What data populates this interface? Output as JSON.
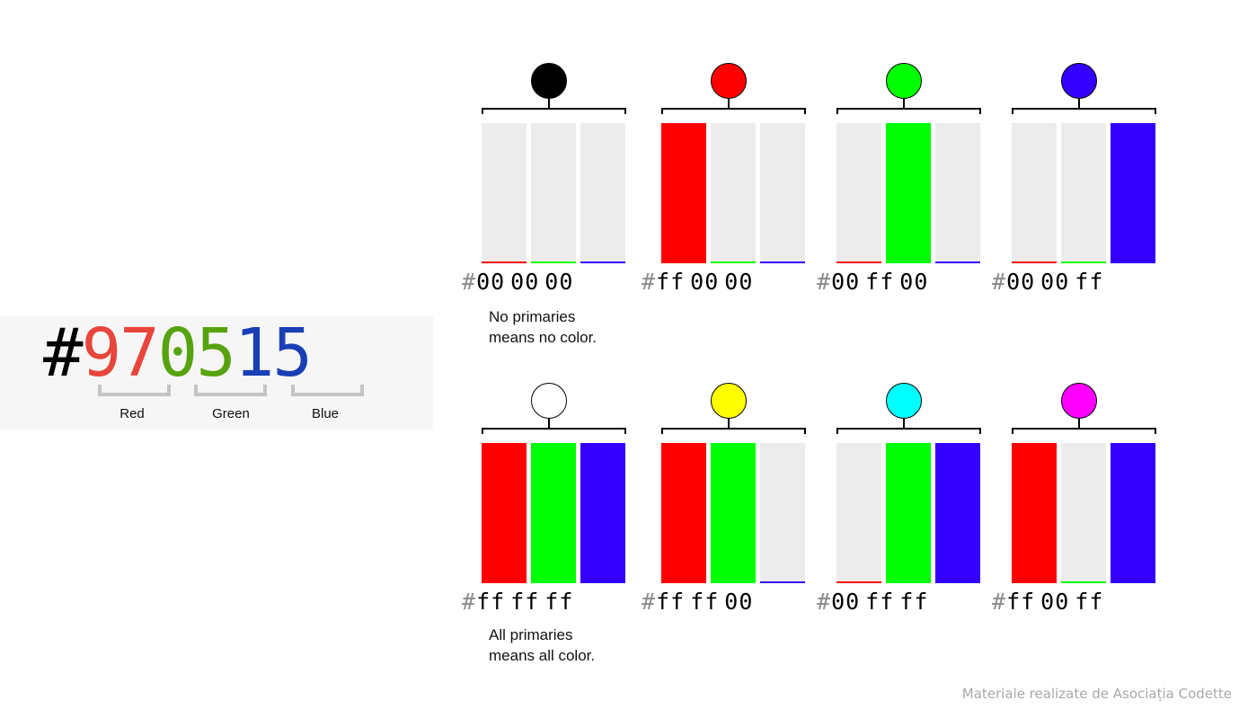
{
  "hex_example": {
    "hash": "#",
    "red_digits": "97",
    "green_digits": "05",
    "blue_digits": "15",
    "colors": {
      "hash": "#000000",
      "red": "#e8453c",
      "green": "#56a30f",
      "blue": "#1a3fb5"
    },
    "labels": {
      "red": "Red",
      "green": "Green",
      "blue": "Blue"
    }
  },
  "swatches": [
    {
      "circle": "#000000",
      "bars": [
        "off",
        "off",
        "off"
      ],
      "code": [
        "#",
        "00",
        "00",
        "00"
      ]
    },
    {
      "circle": "#ff0000",
      "bars": [
        "on",
        "off",
        "off"
      ],
      "code": [
        "#",
        "ff",
        "00",
        "00"
      ]
    },
    {
      "circle": "#00ff00",
      "bars": [
        "off",
        "on",
        "off"
      ],
      "code": [
        "#",
        "00",
        "ff",
        "00"
      ]
    },
    {
      "circle": "#3300ff",
      "bars": [
        "off",
        "off",
        "on"
      ],
      "code": [
        "#",
        "00",
        "00",
        "ff"
      ]
    },
    {
      "circle": "#ffffff",
      "bars": [
        "on",
        "on",
        "on"
      ],
      "code": [
        "#",
        "ff",
        "ff",
        "ff"
      ]
    },
    {
      "circle": "#ffff00",
      "bars": [
        "on",
        "on",
        "off"
      ],
      "code": [
        "#",
        "ff",
        "ff",
        "00"
      ]
    },
    {
      "circle": "#00ffff",
      "bars": [
        "off",
        "on",
        "on"
      ],
      "code": [
        "#",
        "00",
        "ff",
        "ff"
      ]
    },
    {
      "circle": "#ff00ff",
      "bars": [
        "on",
        "off",
        "on"
      ],
      "code": [
        "#",
        "ff",
        "00",
        "ff"
      ]
    }
  ],
  "primary_colors": [
    "#ff0000",
    "#00ff00",
    "#3300ff"
  ],
  "captions": {
    "none": "No primaries\nmeans no color.",
    "all": "All primaries\nmeans all color."
  },
  "footer": "Materiale realizate de Asociația Codette"
}
